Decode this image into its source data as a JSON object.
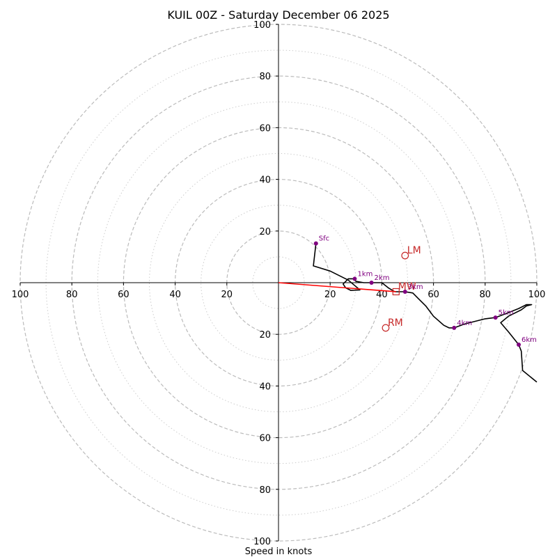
{
  "chart_data": {
    "type": "hodograph",
    "title": "KUIL 00Z - Saturday December 06 2025",
    "xlabel": "Speed in knots",
    "units": "knots",
    "range": 100,
    "ring_major": [
      20,
      40,
      60,
      80,
      100
    ],
    "ring_minor": [
      10,
      30,
      50,
      70,
      90
    ],
    "x_ticks": [
      {
        "v": -100,
        "label": "100"
      },
      {
        "v": -80,
        "label": "80"
      },
      {
        "v": -60,
        "label": "60"
      },
      {
        "v": -40,
        "label": "40"
      },
      {
        "v": -20,
        "label": "20"
      },
      {
        "v": 20,
        "label": "20"
      },
      {
        "v": 40,
        "label": "40"
      },
      {
        "v": 60,
        "label": "60"
      },
      {
        "v": 80,
        "label": "80"
      },
      {
        "v": 100,
        "label": "100"
      }
    ],
    "y_ticks": [
      {
        "v": 100,
        "label": "100"
      },
      {
        "v": 80,
        "label": "80"
      },
      {
        "v": 60,
        "label": "60"
      },
      {
        "v": 40,
        "label": "40"
      },
      {
        "v": 20,
        "label": "20"
      },
      {
        "v": -20,
        "label": "20"
      },
      {
        "v": -40,
        "label": "40"
      },
      {
        "v": -60,
        "label": "60"
      },
      {
        "v": -80,
        "label": "80"
      },
      {
        "v": -100,
        "label": "100"
      }
    ],
    "trace": [
      [
        14.5,
        15.2
      ],
      [
        13.5,
        6.5
      ],
      [
        20,
        4.5
      ],
      [
        27,
        1
      ],
      [
        31.5,
        -2.8
      ],
      [
        28,
        -3
      ],
      [
        26,
        -2
      ],
      [
        25,
        -0.5
      ],
      [
        27,
        1.5
      ],
      [
        29,
        1.5
      ],
      [
        30,
        0.5
      ],
      [
        33,
        0
      ],
      [
        36,
        0
      ],
      [
        40,
        0
      ],
      [
        42.5,
        -2
      ],
      [
        45,
        -3.5
      ],
      [
        49,
        -3.5
      ],
      [
        52,
        -4
      ],
      [
        54,
        -6
      ],
      [
        57,
        -9
      ],
      [
        60,
        -13
      ],
      [
        64,
        -16.5
      ],
      [
        66,
        -17.5
      ],
      [
        68,
        -17.5
      ],
      [
        72,
        -16
      ],
      [
        80,
        -14
      ],
      [
        84,
        -13.5
      ],
      [
        88,
        -12
      ],
      [
        93,
        -10
      ],
      [
        96,
        -8.5
      ],
      [
        98,
        -8.5
      ],
      [
        96,
        -9
      ],
      [
        94,
        -10.5
      ],
      [
        89,
        -13
      ],
      [
        86,
        -15.5
      ],
      [
        89,
        -19
      ],
      [
        93,
        -24
      ],
      [
        94,
        -26.5
      ],
      [
        94.5,
        -34
      ],
      [
        100,
        -38.5
      ]
    ],
    "height_points": [
      {
        "label": "Sfc",
        "u": 14.5,
        "v": 15.2
      },
      {
        "label": "1km",
        "u": 29.5,
        "v": 1.5
      },
      {
        "label": "2km",
        "u": 36,
        "v": 0
      },
      {
        "label": "3km",
        "u": 49,
        "v": -3.5
      },
      {
        "label": "4km",
        "u": 68,
        "v": -17.5
      },
      {
        "label": "5km",
        "u": 84,
        "v": -13.5
      },
      {
        "label": "6km",
        "u": 93,
        "v": -24
      }
    ],
    "storm_motion": [
      {
        "label": "LM",
        "u": 49,
        "v": 10.5,
        "marker": "circle"
      },
      {
        "label": "RM",
        "u": 41.5,
        "v": -17.5,
        "marker": "circle"
      },
      {
        "label": "MW",
        "u": 45.5,
        "v": -3.5,
        "marker": "square"
      }
    ],
    "shear_vector": {
      "from": [
        0,
        0
      ],
      "to": [
        45.5,
        -3.5
      ]
    },
    "colors": {
      "trace": "#000000",
      "height_points": "#800080",
      "storm_motion": "#c62828",
      "shear": "#ff0000",
      "ring_major": "#bbbbbb",
      "ring_minor": "#cccccc"
    }
  }
}
